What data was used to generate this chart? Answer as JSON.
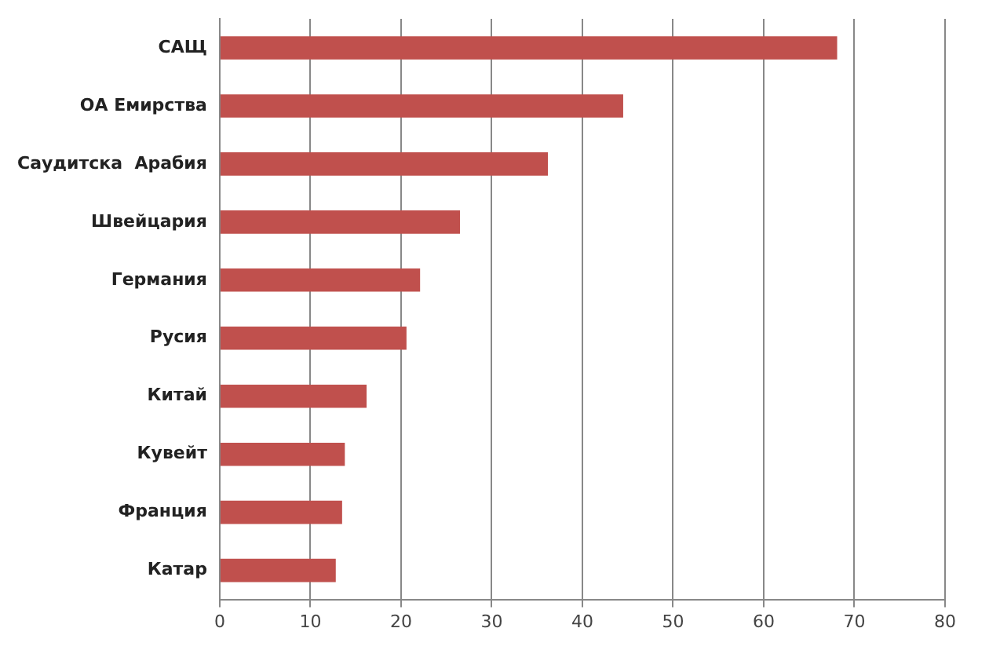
{
  "chart_data": {
    "type": "bar",
    "orientation": "horizontal",
    "categories": [
      "САЩ",
      "ОА Емирства",
      "Саудитска  Арабия",
      "Швейцария",
      "Германия",
      "Русия",
      "Китай",
      "Кувейт",
      "Франция",
      "Катар"
    ],
    "values": [
      68.1,
      44.5,
      36.2,
      26.5,
      22.1,
      20.6,
      16.2,
      13.8,
      13.5,
      12.8
    ],
    "color": "#c0504d",
    "xlim": [
      0,
      80
    ],
    "xticks": [
      0,
      10,
      20,
      30,
      40,
      50,
      60,
      70,
      80
    ],
    "grid": "x",
    "legend": false
  }
}
